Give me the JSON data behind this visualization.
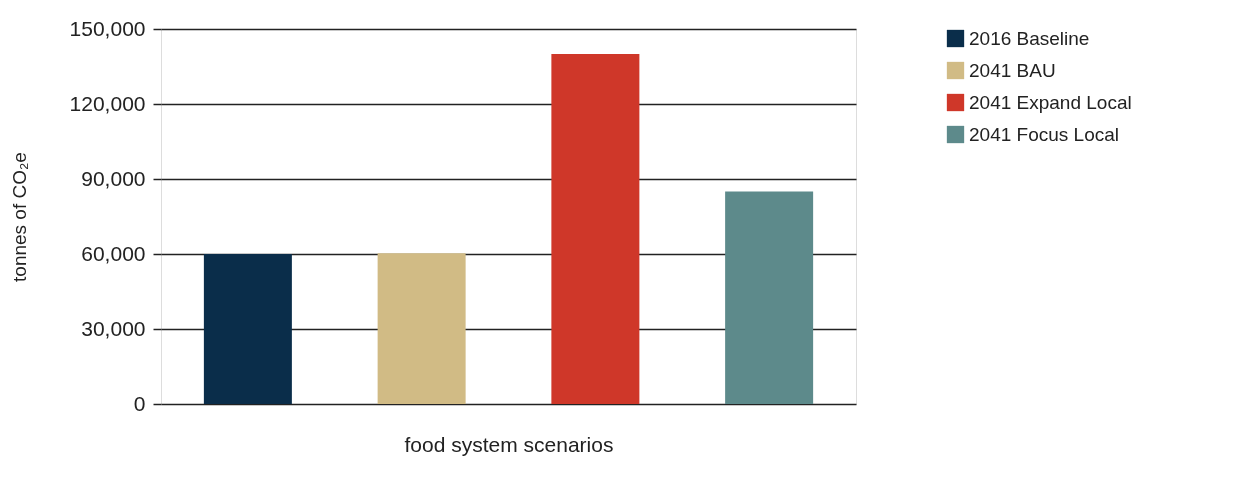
{
  "chart_data": {
    "type": "bar",
    "xlabel": "food system scenarios",
    "ylabel": "tonnes of CO₂e",
    "categories": [
      null,
      null,
      null,
      null
    ],
    "series": [
      {
        "name": "2016 Baseline",
        "color": "#0a2d4a",
        "values": [
          60000,
          null,
          null,
          null
        ]
      },
      {
        "name": "2041 BAU",
        "color": "#d1bb85",
        "values": [
          null,
          60300,
          null,
          null
        ]
      },
      {
        "name": "2041 Expand Local",
        "color": "#cf3729",
        "values": [
          null,
          null,
          140000,
          null
        ]
      },
      {
        "name": "2041 Focus Local",
        "color": "#5d8a8b",
        "values": [
          null,
          null,
          null,
          85000
        ]
      }
    ],
    "ylim": [
      0,
      150000
    ],
    "yticks": [
      0,
      {
        "value": 30000,
        "label": "30,000"
      },
      {
        "value": 60000,
        "label": "60,000"
      },
      {
        "value": 90000,
        "label": "90,000"
      },
      {
        "value": 120000,
        "label": "120,000"
      },
      {
        "value": 150000,
        "label": "150,000"
      }
    ],
    "grid": "y",
    "legend": "right",
    "tick_labels": "y"
  }
}
